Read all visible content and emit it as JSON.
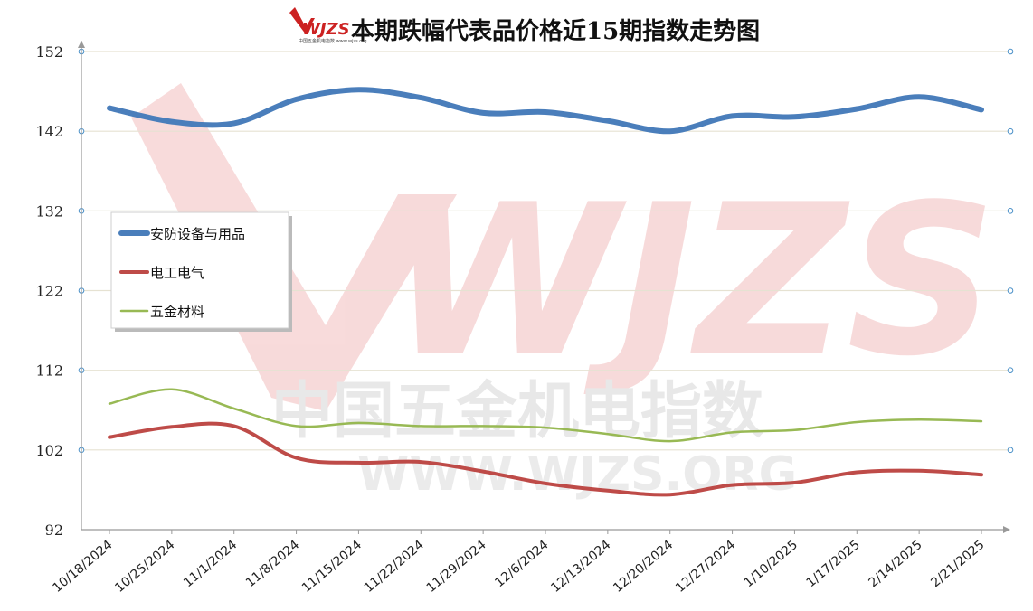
{
  "chart_data": {
    "type": "line",
    "title": "本期跌幅代表品价格近15期指数走势图",
    "logo": {
      "text": "WJZS",
      "subtext": "中国五金机电指数 www.wjzs.org"
    },
    "watermark": {
      "main": "中国五金机电指数",
      "url": "WWW.WJZS.ORG",
      "logo": "WJZS"
    },
    "x": [
      "10/18/2024",
      "10/25/2024",
      "11/1/2024",
      "11/8/2024",
      "11/15/2024",
      "11/22/2024",
      "11/29/2024",
      "12/6/2024",
      "12/13/2024",
      "12/20/2024",
      "12/27/2024",
      "1/10/2025",
      "1/17/2025",
      "2/14/2025",
      "2/21/2025"
    ],
    "ylim": [
      92,
      152
    ],
    "yticks": [
      92,
      102,
      112,
      122,
      132,
      142,
      152
    ],
    "xlabel": "",
    "ylabel": "",
    "grid": true,
    "legend_position": "left-middle",
    "series": [
      {
        "name": "安防设备与用品",
        "color": "#4a7ebb",
        "values": [
          144.9,
          143.2,
          143.0,
          146.0,
          147.2,
          146.2,
          144.3,
          144.4,
          143.3,
          142.0,
          143.9,
          143.8,
          144.8,
          146.3,
          144.7
        ]
      },
      {
        "name": "电工电气",
        "color": "#be4b48",
        "values": [
          103.6,
          104.9,
          105.0,
          101.0,
          100.4,
          100.5,
          99.3,
          97.8,
          96.9,
          96.4,
          97.6,
          97.9,
          99.2,
          99.4,
          98.9
        ]
      },
      {
        "name": "五金材料",
        "color": "#98b954",
        "values": [
          107.8,
          109.6,
          107.2,
          105.0,
          105.4,
          105.0,
          105.0,
          104.8,
          104.0,
          103.1,
          104.2,
          104.5,
          105.5,
          105.8,
          105.6
        ]
      }
    ]
  }
}
